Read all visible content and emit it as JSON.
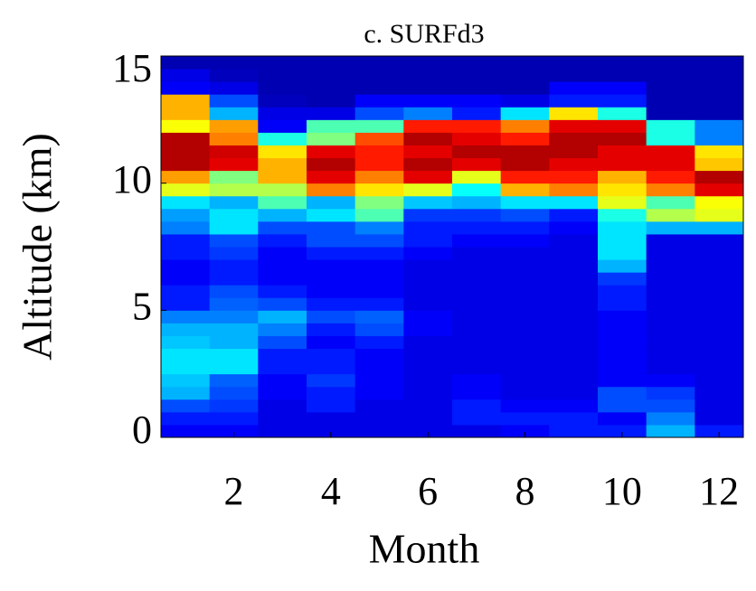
{
  "chart_data": {
    "type": "heatmap",
    "title": "c. SURFd3",
    "x_label": "Month",
    "y_label": "Altitude (km)",
    "x": [
      1,
      2,
      3,
      4,
      5,
      6,
      7,
      8,
      9,
      10,
      11,
      12
    ],
    "y_bins": [
      0,
      0.5,
      1,
      1.5,
      2,
      2.5,
      3,
      3.5,
      4,
      4.5,
      5,
      5.5,
      6,
      6.5,
      7,
      7.5,
      8,
      8.5,
      9,
      9.5,
      10,
      10.5,
      11,
      11.5,
      12,
      12.5,
      13,
      13.5,
      14,
      14.5,
      15
    ],
    "xlim": [
      0.5,
      12.5
    ],
    "xticks": [
      2,
      4,
      6,
      8,
      10,
      12
    ],
    "ylim": [
      0,
      15
    ],
    "yticks": [
      0,
      5,
      10,
      15
    ],
    "colormap": "jet",
    "zlim": [
      0,
      1
    ],
    "values": [
      [
        0.12,
        0.15,
        0.2,
        0.3,
        0.32,
        0.35,
        0.35,
        0.32,
        0.3,
        0.25,
        0.15,
        0.15,
        0.12,
        0.12,
        0.15,
        0.15,
        0.25,
        0.28,
        0.35,
        0.6,
        0.72,
        0.95,
        0.95,
        0.95,
        0.62,
        0.7,
        0.7,
        0.12,
        0.1,
        0.05
      ],
      [
        0.12,
        0.15,
        0.18,
        0.2,
        0.22,
        0.35,
        0.35,
        0.3,
        0.3,
        0.25,
        0.22,
        0.2,
        0.15,
        0.15,
        0.18,
        0.2,
        0.35,
        0.35,
        0.3,
        0.55,
        0.5,
        0.9,
        0.92,
        0.75,
        0.72,
        0.3,
        0.2,
        0.1,
        0.06,
        0.05
      ],
      [
        0.1,
        0.1,
        0.1,
        0.12,
        0.12,
        0.15,
        0.15,
        0.2,
        0.25,
        0.3,
        0.2,
        0.15,
        0.12,
        0.12,
        0.12,
        0.15,
        0.2,
        0.3,
        0.45,
        0.55,
        0.7,
        0.7,
        0.65,
        0.4,
        0.12,
        0.1,
        0.06,
        0.05,
        0.05,
        0.05
      ],
      [
        0.1,
        0.1,
        0.15,
        0.15,
        0.18,
        0.15,
        0.15,
        0.12,
        0.15,
        0.2,
        0.15,
        0.12,
        0.12,
        0.12,
        0.15,
        0.2,
        0.2,
        0.35,
        0.3,
        0.75,
        0.9,
        0.95,
        0.9,
        0.5,
        0.45,
        0.1,
        0.05,
        0.05,
        0.05,
        0.05
      ],
      [
        0.1,
        0.1,
        0.1,
        0.12,
        0.12,
        0.12,
        0.12,
        0.15,
        0.2,
        0.22,
        0.15,
        0.12,
        0.12,
        0.12,
        0.15,
        0.2,
        0.25,
        0.45,
        0.5,
        0.65,
        0.75,
        0.85,
        0.85,
        0.8,
        0.45,
        0.2,
        0.12,
        0.05,
        0.05,
        0.05
      ],
      [
        0.1,
        0.1,
        0.1,
        0.1,
        0.1,
        0.1,
        0.1,
        0.1,
        0.12,
        0.12,
        0.1,
        0.1,
        0.1,
        0.1,
        0.12,
        0.15,
        0.15,
        0.18,
        0.32,
        0.6,
        0.9,
        0.95,
        0.9,
        0.95,
        0.85,
        0.25,
        0.12,
        0.05,
        0.05,
        0.05
      ],
      [
        0.1,
        0.15,
        0.15,
        0.12,
        0.12,
        0.1,
        0.1,
        0.1,
        0.1,
        0.1,
        0.1,
        0.1,
        0.1,
        0.1,
        0.1,
        0.12,
        0.15,
        0.18,
        0.3,
        0.38,
        0.6,
        0.9,
        0.95,
        0.9,
        0.85,
        0.15,
        0.12,
        0.05,
        0.05,
        0.05
      ],
      [
        0.12,
        0.15,
        0.12,
        0.1,
        0.1,
        0.1,
        0.1,
        0.1,
        0.1,
        0.1,
        0.1,
        0.1,
        0.1,
        0.1,
        0.1,
        0.12,
        0.15,
        0.2,
        0.35,
        0.7,
        0.85,
        0.95,
        0.95,
        0.85,
        0.75,
        0.35,
        0.1,
        0.05,
        0.05,
        0.05
      ],
      [
        0.15,
        0.15,
        0.12,
        0.1,
        0.1,
        0.1,
        0.1,
        0.1,
        0.1,
        0.1,
        0.1,
        0.1,
        0.1,
        0.1,
        0.1,
        0.1,
        0.12,
        0.15,
        0.35,
        0.75,
        0.85,
        0.9,
        0.95,
        0.95,
        0.9,
        0.65,
        0.15,
        0.12,
        0.05,
        0.05
      ],
      [
        0.15,
        0.12,
        0.2,
        0.2,
        0.12,
        0.12,
        0.12,
        0.12,
        0.12,
        0.12,
        0.15,
        0.15,
        0.18,
        0.3,
        0.35,
        0.35,
        0.35,
        0.4,
        0.6,
        0.65,
        0.7,
        0.9,
        0.9,
        0.95,
        0.9,
        0.4,
        0.15,
        0.12,
        0.05,
        0.05
      ],
      [
        0.3,
        0.25,
        0.2,
        0.18,
        0.12,
        0.1,
        0.1,
        0.1,
        0.1,
        0.1,
        0.1,
        0.1,
        0.1,
        0.1,
        0.1,
        0.1,
        0.3,
        0.55,
        0.45,
        0.75,
        0.85,
        0.9,
        0.9,
        0.4,
        0.4,
        0.05,
        0.05,
        0.05,
        0.05,
        0.05
      ],
      [
        0.15,
        0.1,
        0.1,
        0.1,
        0.1,
        0.1,
        0.1,
        0.1,
        0.1,
        0.1,
        0.1,
        0.1,
        0.1,
        0.1,
        0.1,
        0.1,
        0.3,
        0.6,
        0.62,
        0.9,
        0.95,
        0.68,
        0.65,
        0.25,
        0.25,
        0.05,
        0.05,
        0.05,
        0.05,
        0.05
      ]
    ]
  }
}
